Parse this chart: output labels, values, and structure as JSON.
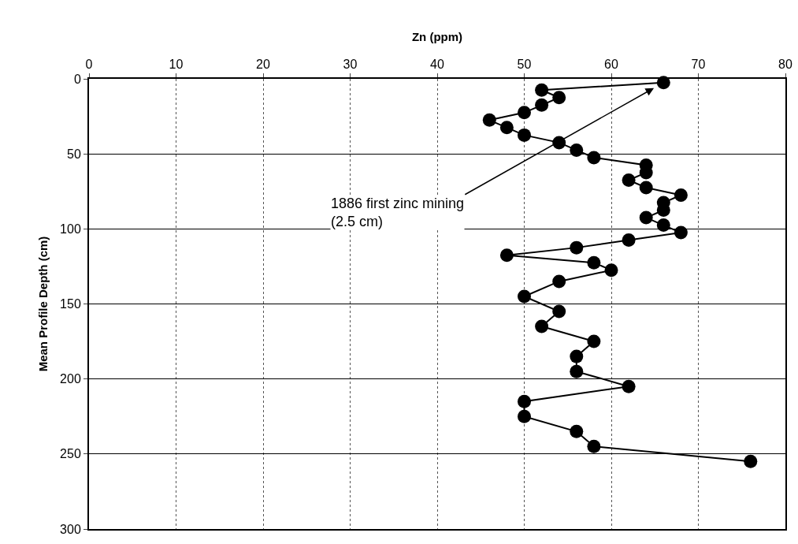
{
  "chart_data": {
    "type": "line",
    "xlabel": "Zn (ppm)",
    "ylabel": "Mean Profile Depth (cm)",
    "x": [
      66,
      52,
      54,
      52,
      50,
      46,
      48,
      50,
      54,
      56,
      58,
      64,
      64,
      62,
      64,
      68,
      66,
      66,
      64,
      66,
      68,
      62,
      56,
      48,
      58,
      60,
      54,
      50,
      54,
      52,
      58,
      56,
      56,
      62,
      50,
      50,
      56,
      58,
      76
    ],
    "series": [
      {
        "color": "#000000",
        "values": [
          2.5,
          7.5,
          12.5,
          17.5,
          22.5,
          27.5,
          32.5,
          37.5,
          42.5,
          47.5,
          52.5,
          57.5,
          62.5,
          67.5,
          72.5,
          77.5,
          82.5,
          87.5,
          92.5,
          97.5,
          102.5,
          107.5,
          112.5,
          117.5,
          122.5,
          127.5,
          135,
          145,
          155,
          165,
          175,
          185,
          195,
          205,
          215,
          225,
          235,
          245,
          255
        ]
      }
    ],
    "xlim": [
      0,
      80
    ],
    "xticks": [
      0,
      10,
      20,
      30,
      40,
      50,
      60,
      70,
      80
    ],
    "ylim": [
      300,
      0
    ],
    "yticks": [
      0,
      50,
      100,
      150,
      200,
      250,
      300
    ],
    "grid": true,
    "marker": "circle",
    "line_style": "solid",
    "annotations": [
      {
        "text": "1886 first zinc mining\n(2.5 cm)",
        "x": 66,
        "y": 2.5
      }
    ]
  }
}
